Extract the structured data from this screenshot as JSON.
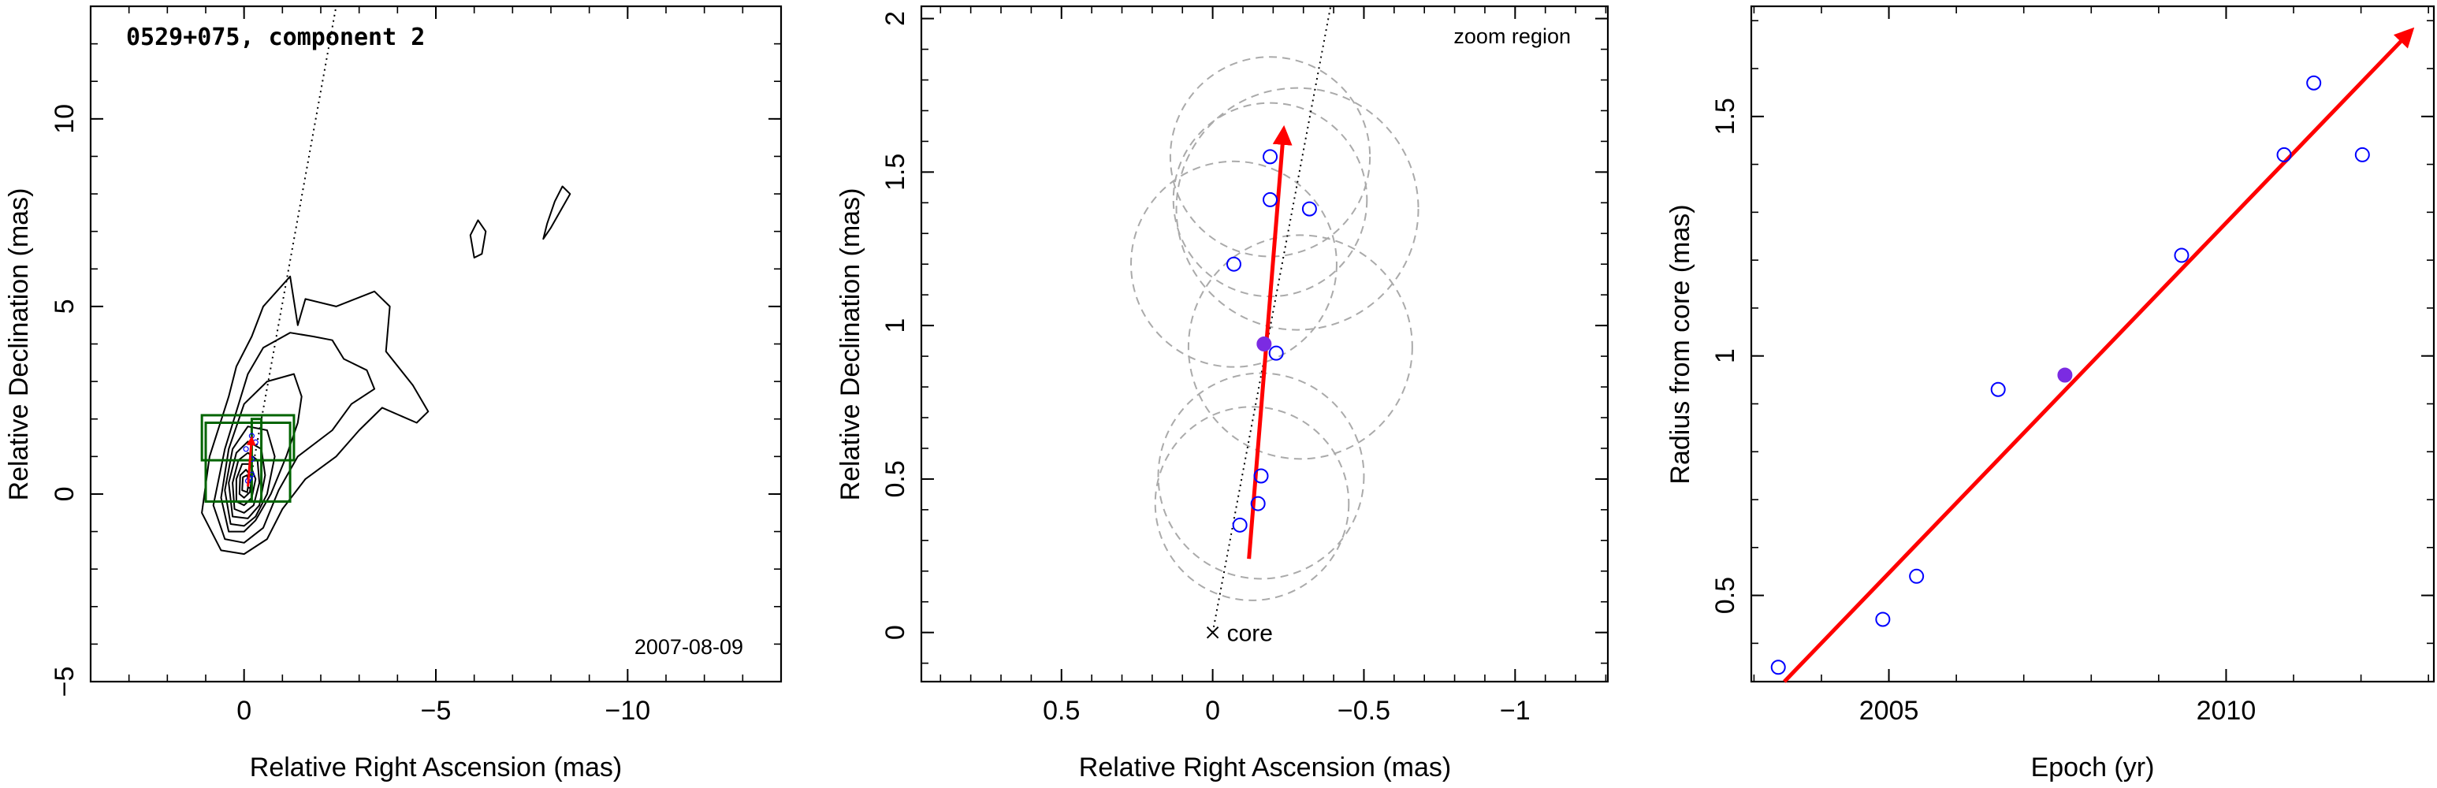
{
  "chart_data": [
    {
      "type": "contour",
      "title": "0529+075, component 2",
      "date_label": "2007-08-09",
      "xlabel": "Relative Right Ascension (mas)",
      "ylabel": "Relative Declination (mas)",
      "xlim": [
        4.0,
        -14.0
      ],
      "ylim": [
        -5.0,
        13.0
      ],
      "xticks": [
        0,
        -5,
        -10
      ],
      "xtick_labels": [
        "0",
        "−5",
        "−10"
      ],
      "yticks": [
        -5,
        0,
        5,
        10
      ],
      "ytick_labels": [
        "−5",
        "0",
        "5",
        "10"
      ],
      "jet_axis_line": {
        "x": [
          -0.1,
          -2.4
        ],
        "y": [
          0.0,
          13.0
        ]
      },
      "zoom_boxes": [
        {
          "x": [
            -1.2,
            1.0
          ],
          "y": [
            -0.2,
            1.9
          ]
        },
        {
          "x": [
            -1.3,
            1.1
          ],
          "y": [
            0.9,
            2.1
          ]
        },
        {
          "x": [
            -0.45,
            -0.2
          ],
          "y": [
            -0.2,
            2.0
          ]
        }
      ],
      "zoom_box_color": "#006400",
      "contours": [
        [
          [
            0.6,
            -1.5
          ],
          [
            1.1,
            -0.5
          ],
          [
            0.9,
            1.0
          ],
          [
            0.4,
            2.6
          ],
          [
            0.2,
            3.4
          ],
          [
            -0.2,
            4.2
          ],
          [
            -0.5,
            5.0
          ],
          [
            -1.2,
            5.8
          ],
          [
            -1.4,
            4.5
          ],
          [
            -1.6,
            5.2
          ],
          [
            -2.4,
            5.0
          ],
          [
            -3.4,
            5.4
          ],
          [
            -3.8,
            5.0
          ],
          [
            -3.7,
            3.8
          ],
          [
            -4.4,
            2.9
          ],
          [
            -4.8,
            2.2
          ],
          [
            -4.5,
            1.9
          ],
          [
            -3.6,
            2.3
          ],
          [
            -3.0,
            1.7
          ],
          [
            -2.4,
            1.0
          ],
          [
            -1.6,
            0.4
          ],
          [
            -1.0,
            -0.4
          ],
          [
            -0.6,
            -1.2
          ],
          [
            0.0,
            -1.6
          ],
          [
            0.6,
            -1.5
          ]
        ],
        [
          [
            0.5,
            -1.2
          ],
          [
            0.8,
            -0.3
          ],
          [
            0.5,
            1.2
          ],
          [
            0.2,
            2.2
          ],
          [
            -0.1,
            3.2
          ],
          [
            -0.5,
            3.9
          ],
          [
            -1.2,
            4.3
          ],
          [
            -1.8,
            4.2
          ],
          [
            -2.3,
            4.1
          ],
          [
            -2.6,
            3.6
          ],
          [
            -3.2,
            3.3
          ],
          [
            -3.4,
            2.8
          ],
          [
            -2.8,
            2.4
          ],
          [
            -2.3,
            1.7
          ],
          [
            -1.4,
            1.0
          ],
          [
            -0.9,
            0.1
          ],
          [
            -0.5,
            -0.9
          ],
          [
            0.0,
            -1.3
          ],
          [
            0.5,
            -1.2
          ]
        ],
        [
          [
            0.4,
            -1.0
          ],
          [
            0.6,
            -0.1
          ],
          [
            0.4,
            1.2
          ],
          [
            0.0,
            2.4
          ],
          [
            -0.6,
            3.0
          ],
          [
            -1.3,
            3.2
          ],
          [
            -1.5,
            2.6
          ],
          [
            -1.4,
            1.9
          ],
          [
            -1.1,
            1.0
          ],
          [
            -0.7,
            0.0
          ],
          [
            -0.3,
            -0.7
          ],
          [
            0.0,
            -1.0
          ],
          [
            0.4,
            -1.0
          ]
        ],
        [
          [
            0.35,
            -0.8
          ],
          [
            0.5,
            0.1
          ],
          [
            0.3,
            1.2
          ],
          [
            -0.1,
            1.8
          ],
          [
            -0.6,
            1.7
          ],
          [
            -0.8,
            1.0
          ],
          [
            -0.6,
            0.0
          ],
          [
            -0.3,
            -0.6
          ],
          [
            0.0,
            -0.85
          ],
          [
            0.35,
            -0.8
          ]
        ],
        [
          [
            0.3,
            -0.6
          ],
          [
            0.4,
            0.3
          ],
          [
            0.2,
            1.1
          ],
          [
            -0.1,
            1.4
          ],
          [
            -0.45,
            1.2
          ],
          [
            -0.55,
            0.5
          ],
          [
            -0.4,
            -0.3
          ],
          [
            -0.1,
            -0.65
          ],
          [
            0.3,
            -0.6
          ]
        ],
        [
          [
            0.25,
            -0.4
          ],
          [
            0.3,
            0.3
          ],
          [
            0.15,
            0.9
          ],
          [
            -0.1,
            1.1
          ],
          [
            -0.35,
            0.9
          ],
          [
            -0.4,
            0.3
          ],
          [
            -0.25,
            -0.3
          ],
          [
            0.0,
            -0.5
          ],
          [
            0.25,
            -0.4
          ]
        ],
        [
          [
            0.2,
            -0.2
          ],
          [
            0.2,
            0.4
          ],
          [
            0.05,
            0.8
          ],
          [
            -0.15,
            0.8
          ],
          [
            -0.3,
            0.4
          ],
          [
            -0.2,
            -0.1
          ],
          [
            0.0,
            -0.3
          ],
          [
            0.2,
            -0.2
          ]
        ],
        [
          [
            0.12,
            0.0
          ],
          [
            0.1,
            0.5
          ],
          [
            -0.05,
            0.65
          ],
          [
            -0.2,
            0.45
          ],
          [
            -0.15,
            0.05
          ],
          [
            0.0,
            -0.1
          ],
          [
            0.12,
            0.0
          ]
        ],
        [
          [
            0.05,
            0.1
          ],
          [
            0.03,
            0.45
          ],
          [
            -0.08,
            0.5
          ],
          [
            -0.12,
            0.3
          ],
          [
            -0.08,
            0.05
          ],
          [
            0.05,
            0.1
          ]
        ],
        [
          [
            -6.0,
            6.3
          ],
          [
            -6.2,
            6.4
          ],
          [
            -6.3,
            7.0
          ],
          [
            -6.1,
            7.3
          ],
          [
            -5.9,
            6.9
          ],
          [
            -6.0,
            6.3
          ]
        ],
        [
          [
            -7.8,
            6.8
          ],
          [
            -8.0,
            7.1
          ],
          [
            -8.5,
            8.0
          ],
          [
            -8.3,
            8.2
          ],
          [
            -8.1,
            7.8
          ],
          [
            -7.9,
            7.2
          ],
          [
            -7.8,
            6.8
          ]
        ]
      ],
      "epoch_points_x": [
        -0.1,
        -0.15,
        -0.2,
        -0.2,
        -0.3,
        -0.05,
        -0.2
      ],
      "epoch_points_y": [
        0.35,
        0.42,
        0.52,
        0.93,
        1.38,
        1.2,
        1.55
      ],
      "marker_color": "#0000ff",
      "arrow_color": "#ff0000"
    },
    {
      "type": "scatter",
      "title": "",
      "corner_label": "zoom region",
      "core_label": "core",
      "xlabel": "Relative Right Ascension (mas)",
      "ylabel": "Relative Declination (mas)",
      "xlim": [
        0.9633,
        -1.3067
      ],
      "ylim": [
        -0.16,
        2.04
      ],
      "xticks": [
        0.5,
        0,
        -0.5,
        -1
      ],
      "xtick_labels": [
        "0.5",
        "0",
        "−0.5",
        "−1"
      ],
      "yticks": [
        0,
        0.5,
        1,
        1.5,
        2
      ],
      "ytick_labels": [
        "0",
        "0.5",
        "1",
        "1.5",
        "2"
      ],
      "core": {
        "x": 0.0,
        "y": 0.0
      },
      "jet_axis_line": {
        "x": [
          0.0,
          -0.39
        ],
        "y": [
          0.0,
          2.04
        ]
      },
      "points": [
        {
          "x": -0.09,
          "y": 0.35,
          "filled": false
        },
        {
          "x": -0.15,
          "y": 0.42,
          "filled": false
        },
        {
          "x": -0.16,
          "y": 0.51,
          "filled": false
        },
        {
          "x": -0.21,
          "y": 0.91,
          "filled": false
        },
        {
          "x": -0.07,
          "y": 1.2,
          "filled": false
        },
        {
          "x": -0.32,
          "y": 1.38,
          "filled": false
        },
        {
          "x": -0.19,
          "y": 1.41,
          "filled": false
        },
        {
          "x": -0.19,
          "y": 1.55,
          "filled": false
        },
        {
          "x": -0.17,
          "y": 0.94,
          "filled": true
        }
      ],
      "circles": [
        {
          "cx": -0.13,
          "cy": 0.42,
          "r": 0.32
        },
        {
          "cx": -0.16,
          "cy": 0.51,
          "r": 0.34
        },
        {
          "cx": -0.29,
          "cy": 0.93,
          "r": 0.37
        },
        {
          "cx": -0.07,
          "cy": 1.2,
          "r": 0.34
        },
        {
          "cx": -0.28,
          "cy": 1.38,
          "r": 0.4
        },
        {
          "cx": -0.19,
          "cy": 1.41,
          "r": 0.32
        },
        {
          "cx": -0.19,
          "cy": 1.55,
          "r": 0.33
        }
      ],
      "arrow": {
        "x": [
          -0.12,
          -0.235
        ],
        "y": [
          0.24,
          1.64
        ]
      },
      "marker_color": "#0000ff",
      "filled_marker_color": "#7b2be2",
      "arrow_color": "#ff0000",
      "circle_color": "#aaaaaa"
    },
    {
      "type": "scatter",
      "title": "",
      "xlabel": "Epoch (yr)",
      "ylabel": "Radius from core (mas)",
      "xlim": [
        2002.96,
        2013.08
      ],
      "ylim": [
        0.32,
        1.73
      ],
      "xticks": [
        2005,
        2010
      ],
      "xtick_labels": [
        "2005",
        "2010"
      ],
      "yticks": [
        0.5,
        1,
        1.5
      ],
      "ytick_labels": [
        "0.5",
        "1",
        "1.5"
      ],
      "points": [
        {
          "x": 2003.36,
          "y": 0.35,
          "filled": false
        },
        {
          "x": 2004.91,
          "y": 0.45,
          "filled": false
        },
        {
          "x": 2005.41,
          "y": 0.54,
          "filled": false
        },
        {
          "x": 2006.62,
          "y": 0.93,
          "filled": false
        },
        {
          "x": 2009.34,
          "y": 1.21,
          "filled": false
        },
        {
          "x": 2010.86,
          "y": 1.42,
          "filled": false
        },
        {
          "x": 2011.3,
          "y": 1.57,
          "filled": false
        },
        {
          "x": 2012.02,
          "y": 1.42,
          "filled": false
        },
        {
          "x": 2007.61,
          "y": 0.96,
          "filled": true
        }
      ],
      "arrow": {
        "x": [
          2003.45,
          2012.75
        ],
        "y": [
          0.32,
          1.68
        ]
      },
      "marker_color": "#0000ff",
      "filled_marker_color": "#7b2be2",
      "arrow_color": "#ff0000"
    }
  ]
}
